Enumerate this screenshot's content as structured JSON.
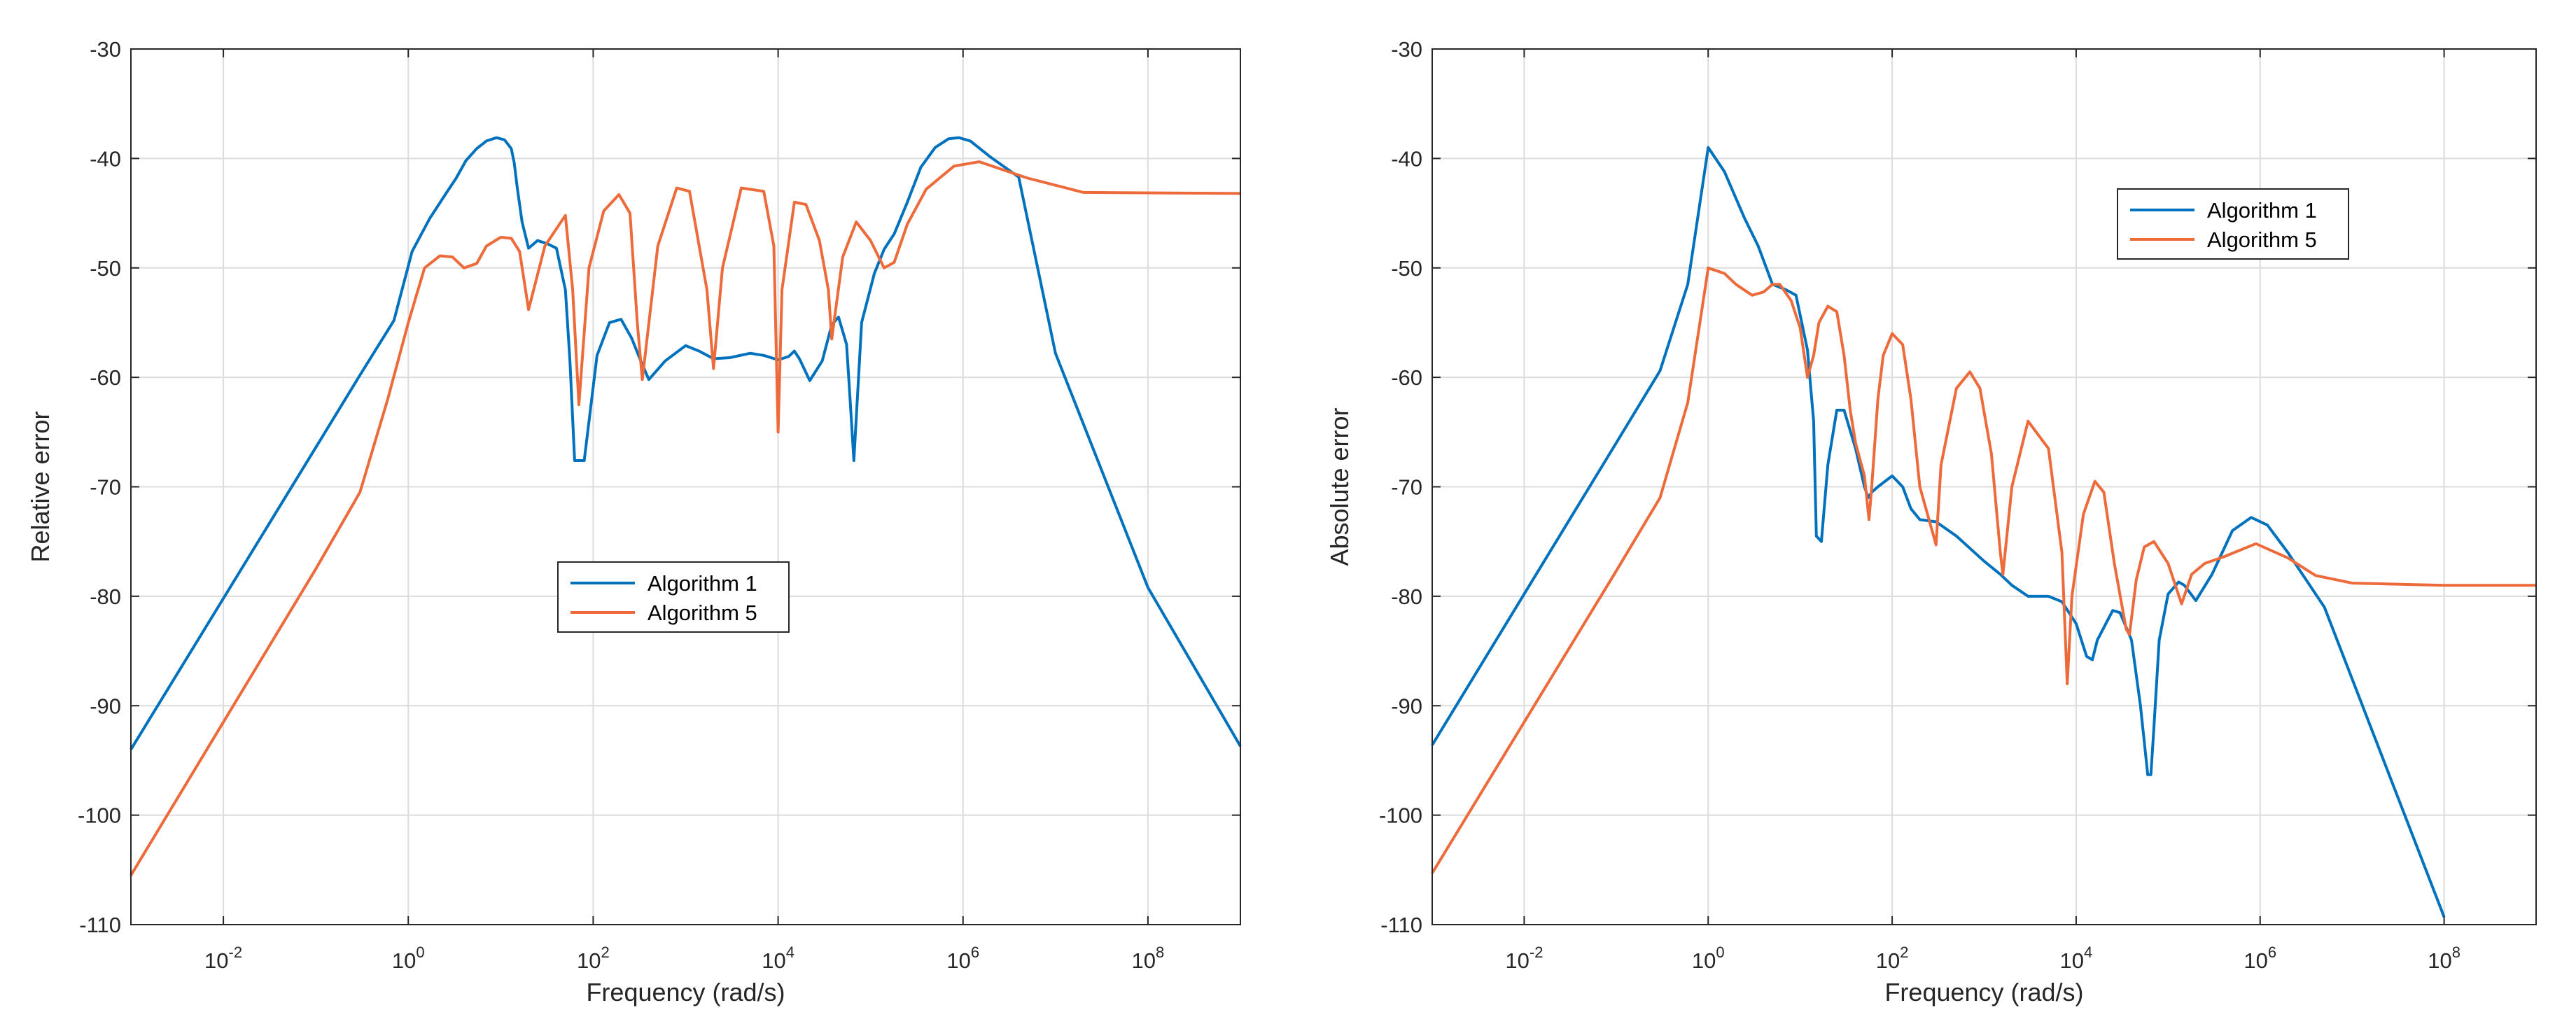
{
  "colors": {
    "algorithm_1": "#0072BD",
    "algorithm_5": "#ED6A3A",
    "grid": "#DCDCDC",
    "axes": "#262626"
  },
  "chart_data": [
    {
      "type": "line",
      "title": "",
      "xlabel": "Frequency (rad/s)",
      "ylabel": "Relative error",
      "xscale": "log",
      "xlim": [
        0.001,
        1000000000
      ],
      "ylim": [
        -110,
        -30
      ],
      "grid": true,
      "legend_position": "center",
      "x_ticks": [
        {
          "value": 0.01,
          "base": "10",
          "exp": "-2"
        },
        {
          "value": 1,
          "base": "10",
          "exp": "0"
        },
        {
          "value": 100,
          "base": "10",
          "exp": "2"
        },
        {
          "value": 10000,
          "base": "10",
          "exp": "4"
        },
        {
          "value": 1000000,
          "base": "10",
          "exp": "6"
        },
        {
          "value": 100000000,
          "base": "10",
          "exp": "8"
        }
      ],
      "y_ticks": [
        {
          "value": -30,
          "label": "-30"
        },
        {
          "value": -40,
          "label": "-40"
        },
        {
          "value": -50,
          "label": "-50"
        },
        {
          "value": -60,
          "label": "-60"
        },
        {
          "value": -70,
          "label": "-70"
        },
        {
          "value": -80,
          "label": "-80"
        },
        {
          "value": -90,
          "label": "-90"
        },
        {
          "value": -100,
          "label": "-100"
        },
        {
          "value": -110,
          "label": "-110"
        }
      ],
      "series": [
        {
          "name": "Algorithm 1",
          "color": "#0072BD",
          "x": [
            0.001,
            0.01,
            0.1,
            0.3,
            0.7,
            1.1,
            1.7,
            2.6,
            3.3,
            4.2,
            5.5,
            7,
            9,
            11,
            13,
            14,
            15,
            17,
            20,
            25,
            32,
            40,
            50,
            56,
            63,
            80,
            110,
            150,
            200,
            260,
            320,
            400,
            600,
            1000,
            1400,
            2000,
            3000,
            5000,
            7000,
            10000,
            13000,
            15000,
            17000,
            22000,
            30000,
            38000,
            45000,
            55000,
            60000,
            66000,
            80000,
            110000,
            140000,
            180000,
            250000,
            350000,
            500000,
            700000,
            900000,
            1200000,
            2000000,
            4000000,
            10000000,
            100000000,
            1000000000
          ],
          "y": [
            -94,
            -80.2,
            -66.4,
            -59.8,
            -54.8,
            -48.5,
            -45.5,
            -43.1,
            -41.8,
            -40.2,
            -39.1,
            -38.4,
            -38.1,
            -38.3,
            -39.1,
            -40.4,
            -42.5,
            -45.8,
            -48.2,
            -47.5,
            -47.8,
            -48.2,
            -52,
            -58.5,
            -67.6,
            -67.6,
            -58,
            -55,
            -54.7,
            -56.4,
            -58.3,
            -60.2,
            -58.5,
            -57.1,
            -57.6,
            -58.3,
            -58.2,
            -57.8,
            -58,
            -58.4,
            -58.1,
            -57.6,
            -58.3,
            -60.3,
            -58.5,
            -55.2,
            -54.5,
            -57,
            -62,
            -67.6,
            -55,
            -50.5,
            -48.3,
            -46.9,
            -44,
            -40.8,
            -39,
            -38.2,
            -38.1,
            -38.4,
            -39.9,
            -41.7,
            -57.8,
            -79.2,
            -93.7
          ]
        },
        {
          "name": "Algorithm 5",
          "color": "#ED6A3A",
          "x": [
            0.001,
            0.01,
            0.1,
            0.3,
            0.6,
            1,
            1.5,
            2.2,
            3,
            4,
            5.5,
            7,
            10,
            13,
            16,
            20,
            30,
            50,
            60,
            70,
            90,
            130,
            190,
            250,
            300,
            340,
            500,
            800,
            1100,
            1700,
            2000,
            2500,
            4000,
            7000,
            9000,
            10000,
            11000,
            15000,
            20000,
            28000,
            35000,
            38000,
            50000,
            70000,
            100000,
            140000,
            180000,
            250000,
            400000,
            800000,
            1500000,
            5000000,
            20000000,
            1000000000
          ],
          "y": [
            -105.5,
            -91.5,
            -77.5,
            -70.5,
            -62,
            -55,
            -50,
            -48.9,
            -49,
            -50,
            -49.6,
            -48,
            -47.2,
            -47.3,
            -48.5,
            -53.8,
            -48,
            -45.2,
            -52,
            -62.5,
            -50,
            -44.8,
            -43.3,
            -45,
            -55,
            -60.2,
            -48,
            -42.7,
            -43,
            -52,
            -59.2,
            -50,
            -42.7,
            -43,
            -48,
            -65,
            -52,
            -44,
            -44.2,
            -47.5,
            -52,
            -56.5,
            -49,
            -45.8,
            -47.5,
            -50,
            -49.5,
            -46,
            -42.8,
            -40.7,
            -40.3,
            -41.8,
            -43.1,
            -43.2
          ]
        }
      ]
    },
    {
      "type": "line",
      "title": "",
      "xlabel": "Frequency (rad/s)",
      "ylabel": "Absolute error",
      "xscale": "log",
      "xlim": [
        0.001,
        1000000000
      ],
      "ylim": [
        -110,
        -30
      ],
      "grid": true,
      "legend_position": "upper-middle-right",
      "x_ticks": [
        {
          "value": 0.01,
          "base": "10",
          "exp": "-2"
        },
        {
          "value": 1,
          "base": "10",
          "exp": "0"
        },
        {
          "value": 100,
          "base": "10",
          "exp": "2"
        },
        {
          "value": 10000,
          "base": "10",
          "exp": "4"
        },
        {
          "value": 1000000,
          "base": "10",
          "exp": "6"
        },
        {
          "value": 100000000,
          "base": "10",
          "exp": "8"
        }
      ],
      "y_ticks": [
        {
          "value": -30,
          "label": "-30"
        },
        {
          "value": -40,
          "label": "-40"
        },
        {
          "value": -50,
          "label": "-50"
        },
        {
          "value": -60,
          "label": "-60"
        },
        {
          "value": -70,
          "label": "-70"
        },
        {
          "value": -80,
          "label": "-80"
        },
        {
          "value": -90,
          "label": "-90"
        },
        {
          "value": -100,
          "label": "-100"
        },
        {
          "value": -110,
          "label": "-110"
        }
      ],
      "series": [
        {
          "name": "Algorithm 1",
          "color": "#0072BD",
          "x": [
            0.001,
            0.01,
            0.1,
            0.3,
            0.6,
            1,
            1.5,
            2.5,
            3.5,
            5,
            7,
            9,
            12,
            14,
            15,
            17,
            20,
            25,
            30,
            40,
            50,
            55,
            60,
            70,
            100,
            130,
            160,
            200,
            300,
            500,
            1000,
            1500,
            2000,
            3000,
            5000,
            7000,
            10000,
            13000,
            15000,
            17000,
            25000,
            30000,
            40000,
            50000,
            60000,
            65000,
            70000,
            80000,
            100000,
            130000,
            150000,
            200000,
            300000,
            500000,
            800000,
            1200000,
            2000000,
            5000000,
            100000000
          ],
          "y": [
            -93.6,
            -79.8,
            -66,
            -59.4,
            -51.5,
            -39,
            -41.2,
            -45.5,
            -48,
            -51.5,
            -52,
            -52.5,
            -57.5,
            -64,
            -74.5,
            -75,
            -68,
            -63,
            -63,
            -66.5,
            -70,
            -71,
            -70.5,
            -70,
            -69,
            -70,
            -72,
            -73,
            -73.2,
            -74.5,
            -76.8,
            -78,
            -79,
            -80,
            -80,
            -80.5,
            -82.5,
            -85.5,
            -85.8,
            -84,
            -81.3,
            -81.5,
            -84,
            -90,
            -96.3,
            -96.3,
            -92,
            -84,
            -79.8,
            -78.7,
            -79,
            -80.4,
            -78,
            -74,
            -72.8,
            -73.5,
            -76,
            -81,
            -109.3
          ]
        },
        {
          "name": "Algorithm 5",
          "color": "#ED6A3A",
          "x": [
            0.001,
            0.01,
            0.1,
            0.3,
            0.6,
            1,
            1.5,
            2,
            3,
            4,
            5,
            6,
            8,
            10,
            12,
            14,
            16,
            20,
            25,
            30,
            35,
            40,
            50,
            56,
            60,
            70,
            80,
            100,
            130,
            160,
            200,
            300,
            340,
            500,
            700,
            900,
            1200,
            1500,
            1600,
            2000,
            3000,
            5000,
            7000,
            8000,
            9000,
            12000,
            16000,
            20000,
            26000,
            35000,
            38000,
            45000,
            55000,
            70000,
            100000,
            140000,
            180000,
            250000,
            400000,
            900000,
            2000000,
            4000000,
            10000000,
            100000000,
            1000000000
          ],
          "y": [
            -105.3,
            -91.5,
            -77.7,
            -71,
            -62.3,
            -50,
            -50.5,
            -51.5,
            -52.5,
            -52.2,
            -51.5,
            -51.5,
            -53,
            -55.5,
            -60,
            -58,
            -55,
            -53.5,
            -54,
            -58,
            -63,
            -66,
            -69,
            -73,
            -70,
            -62,
            -58,
            -56,
            -57,
            -62,
            -70,
            -75.3,
            -68,
            -61,
            -59.5,
            -61,
            -67,
            -76,
            -78,
            -70,
            -64,
            -66.5,
            -76,
            -88,
            -80,
            -72.5,
            -69.5,
            -70.5,
            -77,
            -83,
            -83.5,
            -78.5,
            -75.5,
            -75,
            -77,
            -80.7,
            -78,
            -77,
            -76.4,
            -75.2,
            -76.5,
            -78.1,
            -78.8,
            -79,
            -79
          ]
        }
      ]
    }
  ]
}
